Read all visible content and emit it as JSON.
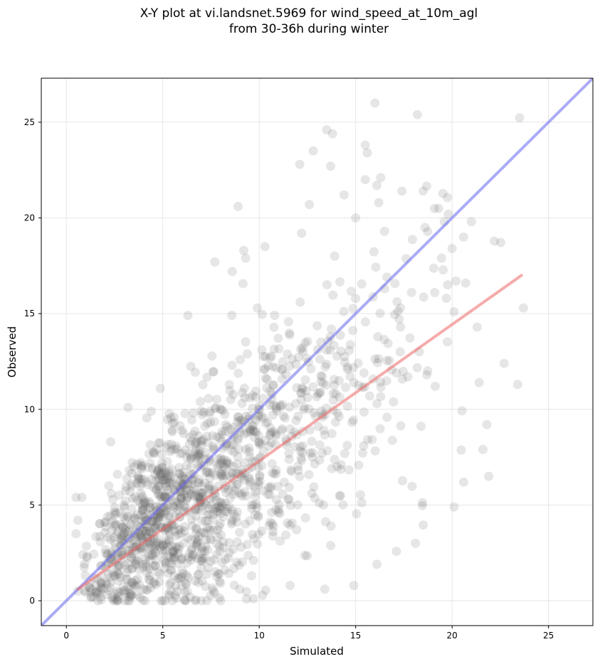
{
  "chart_data": {
    "type": "scatter",
    "title_line1": "X-Y plot at vi.landsnet.5969 for wind_speed_at_10m_agl",
    "title_line2": "from 30-36h during winter",
    "xlabel": "Simulated",
    "ylabel": "Observed",
    "xlim": [
      -1.3,
      27.3
    ],
    "ylim": [
      -1.3,
      27.3
    ],
    "xticks": [
      0,
      5,
      10,
      15,
      20,
      25
    ],
    "yticks": [
      0,
      5,
      10,
      15,
      20,
      25
    ],
    "grid": true,
    "colors": {
      "points": "#555555",
      "identity_line": "#6666ee",
      "fit_line": "#ee6666"
    },
    "identity_line": {
      "from": [
        -1.3,
        -1.3
      ],
      "to": [
        27.3,
        27.3
      ]
    },
    "fit_line": {
      "from": [
        0.6,
        0.6
      ],
      "to": [
        23.6,
        17.0
      ]
    },
    "points_seed": 5969,
    "points_count": 1400,
    "points": [
      [
        16.0,
        26.0
      ],
      [
        18.2,
        25.4
      ],
      [
        13.5,
        24.6
      ],
      [
        13.8,
        24.4
      ],
      [
        15.5,
        23.8
      ],
      [
        15.6,
        23.4
      ],
      [
        12.8,
        23.5
      ],
      [
        13.7,
        22.7
      ],
      [
        12.1,
        22.8
      ],
      [
        16.3,
        22.1
      ],
      [
        15.5,
        22.0
      ],
      [
        14.4,
        21.2
      ],
      [
        16.1,
        21.7
      ],
      [
        17.4,
        21.4
      ],
      [
        18.5,
        21.4
      ],
      [
        16.2,
        20.8
      ],
      [
        12.6,
        20.7
      ],
      [
        8.9,
        20.6
      ],
      [
        19.3,
        20.5
      ],
      [
        19.8,
        20.2
      ],
      [
        15.0,
        20.0
      ],
      [
        19.6,
        19.8
      ],
      [
        21.0,
        19.8
      ],
      [
        20.6,
        19.0
      ],
      [
        18.6,
        19.5
      ],
      [
        16.5,
        19.3
      ],
      [
        12.2,
        19.2
      ],
      [
        10.3,
        18.5
      ],
      [
        9.2,
        18.3
      ],
      [
        9.3,
        17.9
      ],
      [
        7.7,
        17.7
      ],
      [
        8.6,
        17.2
      ],
      [
        20.0,
        18.4
      ],
      [
        20.7,
        16.6
      ],
      [
        20.2,
        16.7
      ],
      [
        19.1,
        16.1
      ],
      [
        19.7,
        15.8
      ],
      [
        23.7,
        15.3
      ],
      [
        9.9,
        15.3
      ],
      [
        6.3,
        14.9
      ],
      [
        21.3,
        14.3
      ],
      [
        20.1,
        15.1
      ],
      [
        22.7,
        12.4
      ],
      [
        23.4,
        11.3
      ],
      [
        21.4,
        11.4
      ],
      [
        21.8,
        9.2
      ],
      [
        21.6,
        7.9
      ],
      [
        21.9,
        6.5
      ],
      [
        20.6,
        6.2
      ],
      [
        20.1,
        4.9
      ],
      [
        18.1,
        3.0
      ],
      [
        16.1,
        1.9
      ],
      [
        14.9,
        0.8
      ],
      [
        13.4,
        0.6
      ],
      [
        11.6,
        0.8
      ],
      [
        9.7,
        0.1
      ],
      [
        3.2,
        10.1
      ],
      [
        4.4,
        9.9
      ],
      [
        2.3,
        8.3
      ],
      [
        0.5,
        5.4
      ],
      [
        0.8,
        5.4
      ],
      [
        0.6,
        4.2
      ],
      [
        0.5,
        3.5
      ],
      [
        0.6,
        0.5
      ],
      [
        1.4,
        0.2
      ],
      [
        2.6,
        0.0
      ],
      [
        3.2,
        0.0
      ],
      [
        5.5,
        0.0
      ],
      [
        6.2,
        0.0
      ],
      [
        7.0,
        0.0
      ],
      [
        8.0,
        0.0
      ]
    ]
  }
}
